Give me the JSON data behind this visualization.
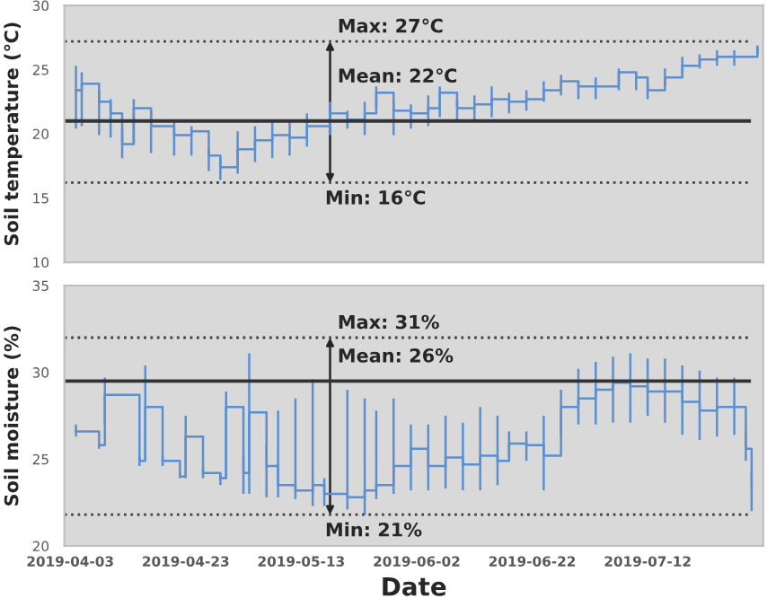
{
  "chart_data": [
    {
      "type": "step",
      "ylabel": "Soil temperature (℃)",
      "xlim": [
        "2019-04-02",
        "2019-08-01"
      ],
      "ylim": [
        10,
        30
      ],
      "yticks": [
        10,
        15,
        20,
        25,
        30
      ],
      "xticks": [
        {
          "value": "2019-04-03",
          "label": null
        },
        {
          "value": "2019-04-23",
          "label": null
        },
        {
          "value": "2019-05-13",
          "label": null
        },
        {
          "value": "2019-06-02",
          "label": null
        },
        {
          "value": "2019-06-22",
          "label": null
        },
        {
          "value": "2019-07-12",
          "label": null
        }
      ],
      "tick_labels": "y",
      "grid": false,
      "annotations": [
        {
          "text": "Max: 27℃",
          "x": "2019-05-18",
          "y": 27.2
        },
        {
          "text": "Mean: 22℃",
          "x": "2019-05-18",
          "y": 21.0
        },
        {
          "text": "Min: 16℃",
          "x": "2019-05-18",
          "y": 16.2
        }
      ],
      "x": [
        "2019-04-04",
        "2019-04-05",
        "2019-04-08",
        "2019-04-10",
        "2019-04-12",
        "2019-04-14",
        "2019-04-17",
        "2019-04-21",
        "2019-04-24",
        "2019-04-27",
        "2019-04-29",
        "2019-05-02",
        "2019-05-05",
        "2019-05-08",
        "2019-05-11",
        "2019-05-14",
        "2019-05-18",
        "2019-05-21",
        "2019-05-24",
        "2019-05-26",
        "2019-05-29",
        "2019-06-01",
        "2019-06-04",
        "2019-06-06",
        "2019-06-09",
        "2019-06-12",
        "2019-06-15",
        "2019-06-18",
        "2019-06-21",
        "2019-06-24",
        "2019-06-27",
        "2019-06-30",
        "2019-07-03",
        "2019-07-07",
        "2019-07-10",
        "2019-07-12",
        "2019-07-15",
        "2019-07-18",
        "2019-07-21",
        "2019-07-24",
        "2019-07-27",
        "2019-07-31"
      ],
      "series": [
        {
          "color": "#5b8fd1",
          "values": [
            23.4,
            23.9,
            22.5,
            21.6,
            19.2,
            22.0,
            20.6,
            19.9,
            20.2,
            18.3,
            17.4,
            18.8,
            19.5,
            19.9,
            19.7,
            20.6,
            21.6,
            21.1,
            21.6,
            23.2,
            21.8,
            21.6,
            22.0,
            23.2,
            22.0,
            22.3,
            22.7,
            22.5,
            22.7,
            23.4,
            24.1,
            23.7,
            23.7,
            24.8,
            24.4,
            23.4,
            24.4,
            25.3,
            25.8,
            26.0,
            26.0,
            26.7
          ],
          "errors": [
            [
              20.4,
              25.3
            ],
            [
              20.6,
              24.8
            ],
            [
              19.9,
              23.4
            ],
            [
              19.7,
              22.7
            ],
            [
              18.1,
              20.4
            ],
            [
              19.2,
              22.7
            ],
            [
              18.5,
              21.8
            ],
            [
              18.3,
              20.9
            ],
            [
              18.3,
              20.6
            ],
            [
              17.1,
              18.8
            ],
            [
              16.4,
              18.1
            ],
            [
              16.9,
              20.2
            ],
            [
              17.8,
              20.6
            ],
            [
              18.1,
              20.9
            ],
            [
              18.3,
              20.9
            ],
            [
              19.0,
              21.6
            ],
            [
              19.9,
              22.5
            ],
            [
              20.4,
              21.8
            ],
            [
              19.9,
              22.5
            ],
            [
              22.0,
              23.7
            ],
            [
              19.9,
              22.5
            ],
            [
              20.4,
              22.3
            ],
            [
              20.6,
              23.0
            ],
            [
              21.3,
              23.7
            ],
            [
              21.1,
              22.7
            ],
            [
              21.1,
              23.0
            ],
            [
              21.3,
              23.7
            ],
            [
              21.6,
              23.2
            ],
            [
              21.8,
              23.4
            ],
            [
              22.5,
              24.1
            ],
            [
              23.0,
              24.6
            ],
            [
              22.7,
              24.1
            ],
            [
              22.7,
              24.4
            ],
            [
              23.4,
              25.1
            ],
            [
              23.4,
              24.8
            ],
            [
              22.7,
              23.9
            ],
            [
              23.7,
              25.1
            ],
            [
              24.6,
              26.0
            ],
            [
              25.1,
              26.2
            ],
            [
              25.3,
              26.5
            ],
            [
              25.3,
              26.5
            ],
            [
              26.2,
              26.9
            ]
          ]
        }
      ],
      "ref_lines": [
        {
          "axis": "y",
          "value": 27.2,
          "line_style": "dotted",
          "color": "#404040"
        },
        {
          "axis": "y",
          "value": 21.0,
          "line_style": "solid",
          "color": "#333333"
        },
        {
          "axis": "y",
          "value": 16.2,
          "line_style": "dotted",
          "color": "#404040"
        }
      ]
    },
    {
      "type": "step",
      "ylabel": "Soil moisture (%)",
      "xlabel": "Date",
      "xlim": [
        "2019-04-02",
        "2019-08-01"
      ],
      "ylim": [
        20,
        35
      ],
      "yticks": [
        20,
        25,
        30,
        35
      ],
      "xticks": [
        "2019-04-03",
        "2019-04-23",
        "2019-05-13",
        "2019-06-02",
        "2019-06-22",
        "2019-07-12"
      ],
      "grid": false,
      "annotations": [
        {
          "text": "Max: 31%",
          "x": "2019-05-18",
          "y": 32.0
        },
        {
          "text": "Mean: 26%",
          "x": "2019-05-18",
          "y": 29.5
        },
        {
          "text": "Min: 21%",
          "x": "2019-05-18",
          "y": 21.8
        }
      ],
      "x": [
        "2019-04-04",
        "2019-04-08",
        "2019-04-09",
        "2019-04-15",
        "2019-04-16",
        "2019-04-19",
        "2019-04-22",
        "2019-04-23",
        "2019-04-26",
        "2019-04-29",
        "2019-04-30",
        "2019-05-03",
        "2019-05-04",
        "2019-05-07",
        "2019-05-09",
        "2019-05-12",
        "2019-05-15",
        "2019-05-17",
        "2019-05-21",
        "2019-05-24",
        "2019-05-26",
        "2019-05-29",
        "2019-06-01",
        "2019-06-04",
        "2019-06-07",
        "2019-06-10",
        "2019-06-13",
        "2019-06-16",
        "2019-06-18",
        "2019-06-21",
        "2019-06-24",
        "2019-06-27",
        "2019-06-30",
        "2019-07-03",
        "2019-07-06",
        "2019-07-09",
        "2019-07-12",
        "2019-07-15",
        "2019-07-18",
        "2019-07-21",
        "2019-07-24",
        "2019-07-27",
        "2019-07-29",
        "2019-07-30"
      ],
      "series": [
        {
          "color": "#5b8fd1",
          "values": [
            26.6,
            25.8,
            28.7,
            24.9,
            28.0,
            24.9,
            24.0,
            26.3,
            24.2,
            23.9,
            28.0,
            24.2,
            27.7,
            24.6,
            23.5,
            23.2,
            23.5,
            23.0,
            22.8,
            23.2,
            23.5,
            24.6,
            25.6,
            24.6,
            25.1,
            24.7,
            25.2,
            24.9,
            25.9,
            25.8,
            25.2,
            28.0,
            28.5,
            29.0,
            29.4,
            29.2,
            28.9,
            28.9,
            28.3,
            27.8,
            28.0,
            28.0,
            25.6,
            23.5
          ],
          "errors": [
            [
              26.3,
              27.0
            ],
            [
              25.6,
              25.9
            ],
            [
              27.0,
              29.7
            ],
            [
              24.6,
              25.2
            ],
            [
              24.9,
              30.4
            ],
            [
              24.6,
              25.2
            ],
            [
              23.9,
              24.2
            ],
            [
              23.9,
              27.5
            ],
            [
              23.9,
              24.6
            ],
            [
              23.5,
              24.2
            ],
            [
              23.9,
              28.9
            ],
            [
              23.0,
              25.2
            ],
            [
              23.0,
              31.1
            ],
            [
              22.8,
              25.9
            ],
            [
              22.8,
              27.8
            ],
            [
              22.7,
              28.5
            ],
            [
              22.3,
              29.6
            ],
            [
              22.3,
              23.9
            ],
            [
              22.1,
              29.0
            ],
            [
              21.8,
              28.5
            ],
            [
              22.7,
              27.8
            ],
            [
              23.0,
              28.5
            ],
            [
              23.2,
              27.0
            ],
            [
              23.2,
              27.0
            ],
            [
              23.3,
              27.5
            ],
            [
              23.2,
              27.1
            ],
            [
              23.2,
              28.0
            ],
            [
              23.5,
              27.5
            ],
            [
              25.1,
              26.6
            ],
            [
              24.9,
              26.6
            ],
            [
              23.2,
              27.5
            ],
            [
              26.3,
              29.0
            ],
            [
              27.0,
              30.2
            ],
            [
              27.0,
              30.6
            ],
            [
              27.1,
              30.9
            ],
            [
              27.1,
              31.1
            ],
            [
              27.5,
              30.8
            ],
            [
              27.1,
              30.8
            ],
            [
              26.4,
              30.4
            ],
            [
              26.1,
              30.1
            ],
            [
              26.3,
              29.7
            ],
            [
              26.4,
              29.7
            ],
            [
              24.9,
              26.6
            ],
            [
              22.0,
              24.2
            ]
          ]
        }
      ],
      "ref_lines": [
        {
          "axis": "y",
          "value": 32.0,
          "line_style": "dotted",
          "color": "#404040"
        },
        {
          "axis": "y",
          "value": 29.5,
          "line_style": "solid",
          "color": "#333333"
        },
        {
          "axis": "y",
          "value": 21.8,
          "line_style": "dotted",
          "color": "#404040"
        }
      ]
    }
  ]
}
